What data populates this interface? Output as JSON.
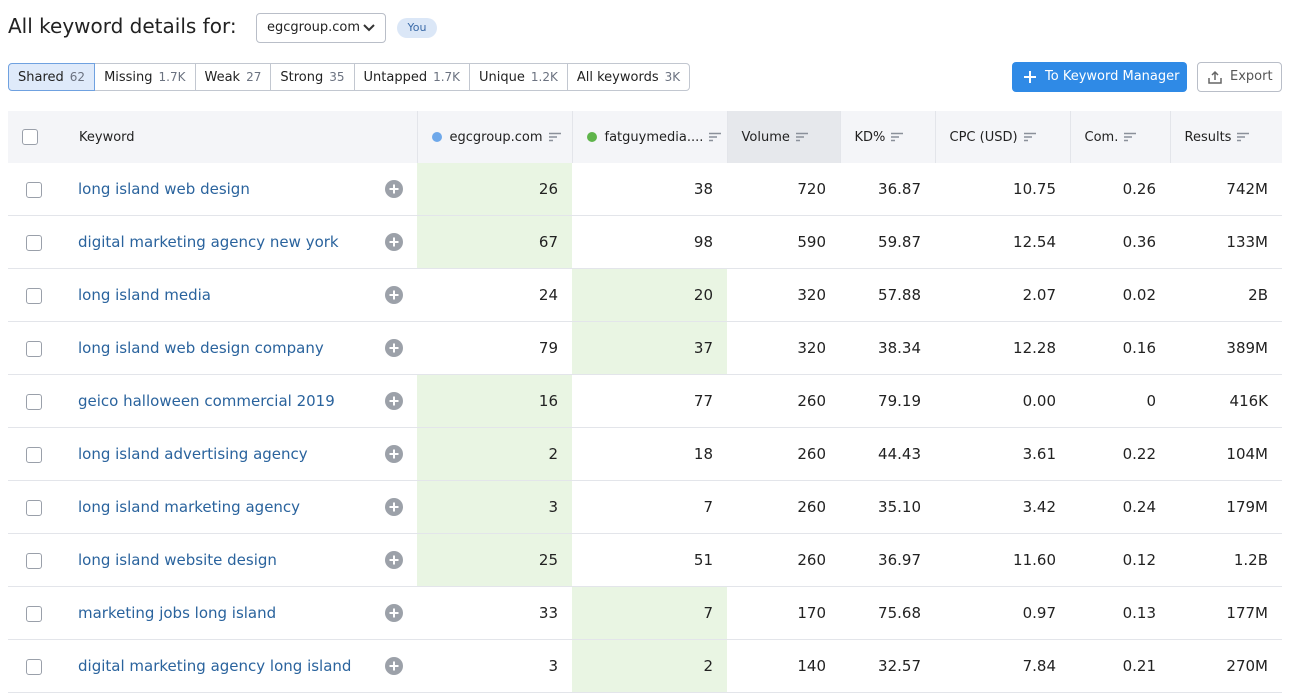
{
  "header": {
    "title": "All keyword details for:",
    "domain": "egcgroup.com",
    "badge": "You"
  },
  "tabs": [
    {
      "label": "Shared",
      "count": "62"
    },
    {
      "label": "Missing",
      "count": "1.7K"
    },
    {
      "label": "Weak",
      "count": "27"
    },
    {
      "label": "Strong",
      "count": "35"
    },
    {
      "label": "Untapped",
      "count": "1.7K"
    },
    {
      "label": "Unique",
      "count": "1.2K"
    },
    {
      "label": "All keywords",
      "count": "3K"
    }
  ],
  "buttons": {
    "keyword_manager": "To Keyword Manager",
    "export": "Export"
  },
  "table": {
    "columns": [
      "Keyword",
      "egcgroup.com",
      "fatguymedia....",
      "Volume",
      "KD%",
      "CPC (USD)",
      "Com.",
      "Results"
    ],
    "rows": [
      [
        "long island web design",
        "26",
        "38",
        "720",
        "36.87",
        "10.75",
        "0.26",
        "742M"
      ],
      [
        "digital marketing agency new york",
        "67",
        "98",
        "590",
        "59.87",
        "12.54",
        "0.36",
        "133M"
      ],
      [
        "long island media",
        "24",
        "20",
        "320",
        "57.88",
        "2.07",
        "0.02",
        "2B"
      ],
      [
        "long island web design company",
        "79",
        "37",
        "320",
        "38.34",
        "12.28",
        "0.16",
        "389M"
      ],
      [
        "geico halloween commercial 2019",
        "16",
        "77",
        "260",
        "79.19",
        "0.00",
        "0",
        "416K"
      ],
      [
        "long island advertising agency",
        "2",
        "18",
        "260",
        "44.43",
        "3.61",
        "0.22",
        "104M"
      ],
      [
        "long island marketing agency",
        "3",
        "7",
        "260",
        "35.10",
        "3.42",
        "0.24",
        "179M"
      ],
      [
        "long island website design",
        "25",
        "51",
        "260",
        "36.97",
        "11.60",
        "0.12",
        "1.2B"
      ],
      [
        "marketing jobs long island",
        "33",
        "7",
        "170",
        "75.68",
        "0.97",
        "0.13",
        "177M"
      ],
      [
        "digital marketing agency long island",
        "3",
        "2",
        "140",
        "32.57",
        "7.84",
        "0.21",
        "270M"
      ]
    ]
  }
}
